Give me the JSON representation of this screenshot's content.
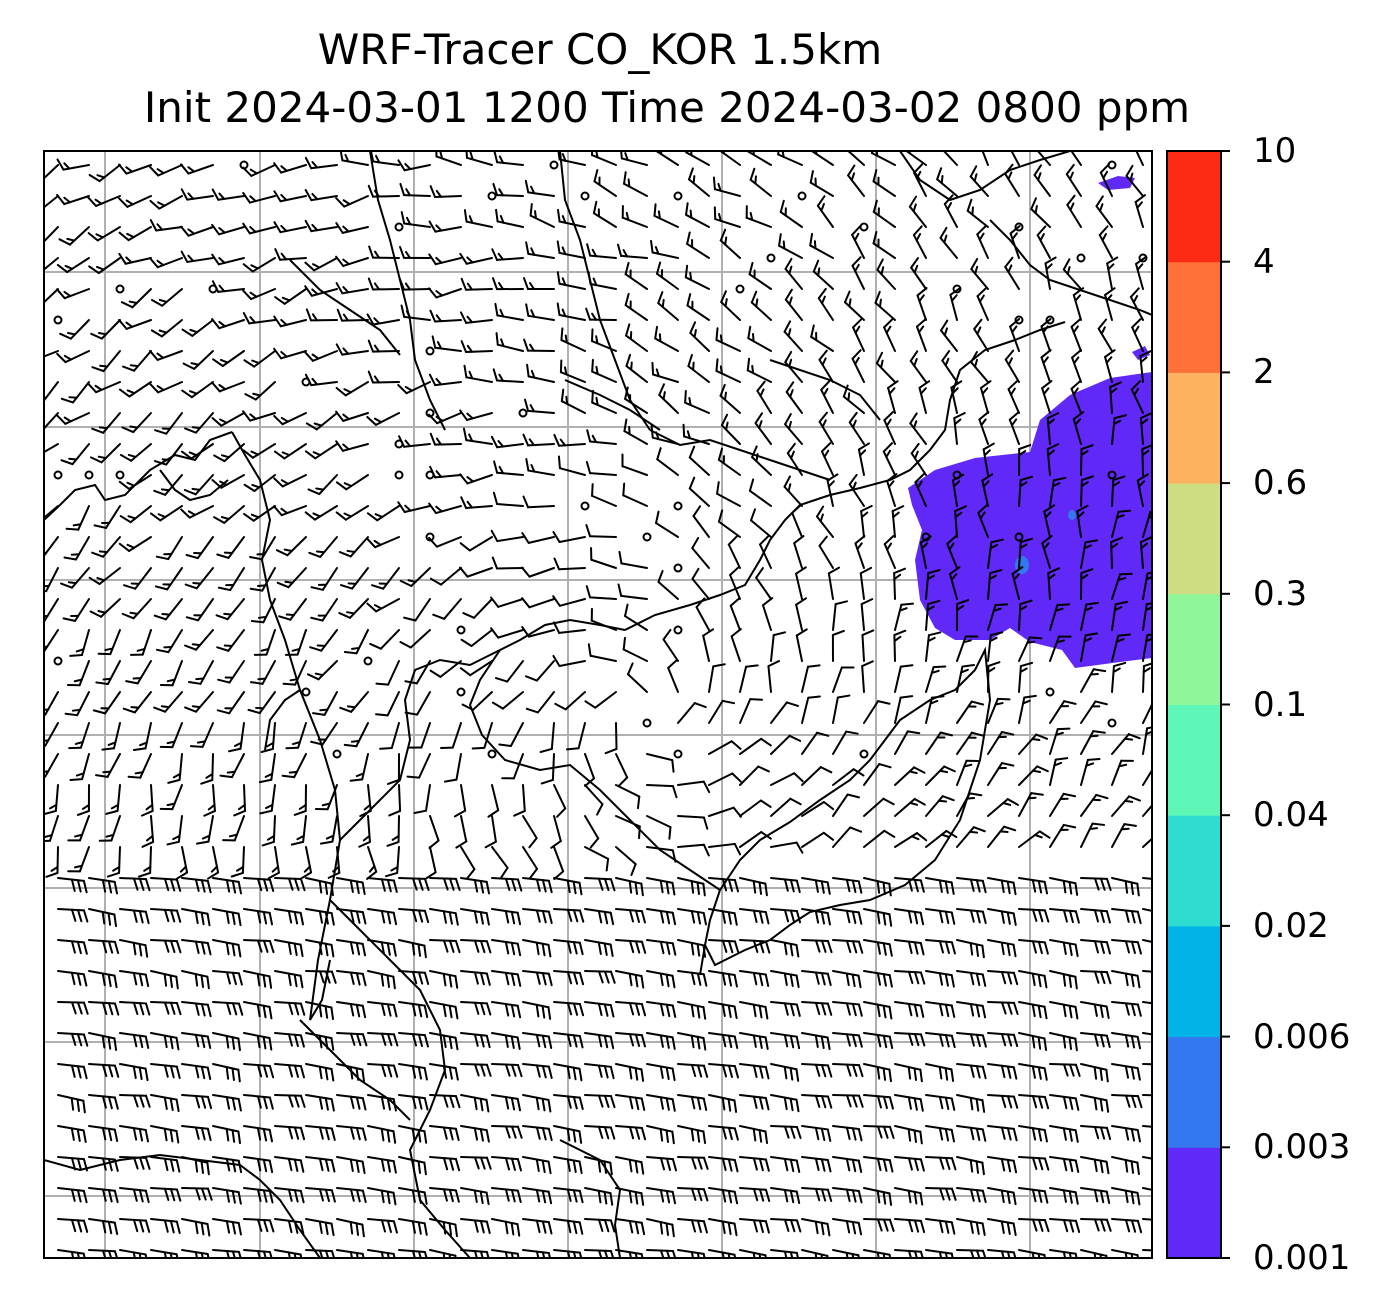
{
  "title": {
    "line1": "WRF-Tracer CO_KOR 1.5km",
    "line2": "Init 2024-03-01 1200 Time 2024-03-02 0800 ppm"
  },
  "map": {
    "grid": "on",
    "overlay": "wind barbs",
    "plume": {
      "location": "east side of domain, upper-right",
      "level_range": [
        0.001,
        0.003
      ],
      "color": "#6129f7"
    },
    "small_patch_color": "#3478f0"
  },
  "colorbar": {
    "levels": [
      "0.001",
      "0.003",
      "0.006",
      "0.02",
      "0.04",
      "0.1",
      "0.3",
      "0.6",
      "2",
      "4",
      "10"
    ],
    "colors": [
      "#6129f7",
      "#3478f0",
      "#00b3e8",
      "#2fdcd1",
      "#5ff7b8",
      "#8ff79a",
      "#cfde83",
      "#fdb261",
      "#ff7038",
      "#ff2a14"
    ]
  }
}
